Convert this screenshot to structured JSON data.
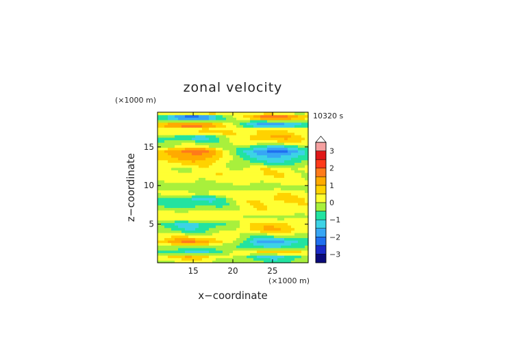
{
  "chart_data": {
    "type": "heatmap",
    "title": "zonal velocity",
    "xlabel": "x−coordinate",
    "ylabel": "z−coordinate",
    "x_unit": "(×1000 m)",
    "y_unit": "(×1000 m)",
    "time_label": "10320 s",
    "xlim": [
      10.5,
      29.5
    ],
    "ylim": [
      0,
      19.5
    ],
    "x_ticks": [
      15,
      20,
      25
    ],
    "y_ticks": [
      5,
      10,
      15
    ],
    "grid": false,
    "colorbar": {
      "levels": [
        -3.5,
        -3,
        -2.5,
        -2,
        -1.5,
        -1,
        -0.5,
        0,
        0.5,
        1,
        1.5,
        2,
        2.5,
        3,
        3.5
      ],
      "colors": [
        "#0a0a7a",
        "#1a2ac8",
        "#1f6ff0",
        "#37a6f5",
        "#3cd3e6",
        "#22e3a0",
        "#a8f03c",
        "#ffff33",
        "#ffd200",
        "#ffaa00",
        "#ff7a1a",
        "#ff3a1a",
        "#e01818",
        "#f5a0a0"
      ],
      "tick_labels": [
        "3",
        "2",
        "1",
        "0",
        "−1",
        "−2",
        "−3"
      ],
      "tick_values": [
        3,
        2,
        1,
        0,
        -1,
        -2,
        -3
      ],
      "extend": "max"
    },
    "bands": [
      {
        "z": 19.3,
        "left": 0.3,
        "right": 0.3
      },
      {
        "z": 18.9,
        "left": -2.8,
        "right": 2.4
      },
      {
        "z": 18.4,
        "left": -0.5,
        "right": -0.3
      },
      {
        "z": 17.9,
        "left": 2.3,
        "right": -2.3
      },
      {
        "z": 17.3,
        "left": 0.2,
        "right": 0.5
      },
      {
        "z": 16.9,
        "left": 0.8,
        "right": 0.6
      },
      {
        "z": 16.3,
        "left": -1.3,
        "right": 1.1
      },
      {
        "z": 15.6,
        "left": -0.4,
        "right": 0.5
      },
      {
        "z": 15.1,
        "left": 0.2,
        "right": -1.0
      },
      {
        "z": 14.5,
        "left": 1.8,
        "right": -2.2
      },
      {
        "z": 13.6,
        "left": 1.3,
        "right": -1.4
      },
      {
        "z": 12.9,
        "left": 0.7,
        "right": -0.8
      },
      {
        "z": 12.2,
        "left": 0.1,
        "right": 0.3
      },
      {
        "z": 11.4,
        "left": 0.3,
        "right": 0.4
      },
      {
        "z": 10.7,
        "left": 0.1,
        "right": 0.2
      },
      {
        "z": 9.8,
        "left": -0.3,
        "right": -0.2
      },
      {
        "z": 9.0,
        "left": 0.2,
        "right": 0.4
      },
      {
        "z": 8.3,
        "left": -1.2,
        "right": 0.7
      },
      {
        "z": 7.4,
        "left": -0.8,
        "right": 0.5
      },
      {
        "z": 6.6,
        "left": 0.2,
        "right": 0.3
      },
      {
        "z": 5.9,
        "left": 0.5,
        "right": -0.2
      },
      {
        "z": 5.0,
        "left": -1.2,
        "right": 0.8
      },
      {
        "z": 4.3,
        "left": -0.8,
        "right": 1.0
      },
      {
        "z": 3.5,
        "left": 0.3,
        "right": -0.4
      },
      {
        "z": 2.8,
        "left": 1.6,
        "right": -1.8
      },
      {
        "z": 2.0,
        "left": -0.3,
        "right": -0.9
      },
      {
        "z": 1.4,
        "left": -1.2,
        "right": 1.0
      },
      {
        "z": 0.8,
        "left": 0.9,
        "right": -1.2
      },
      {
        "z": 0.3,
        "left": 0.2,
        "right": -0.6
      }
    ]
  }
}
